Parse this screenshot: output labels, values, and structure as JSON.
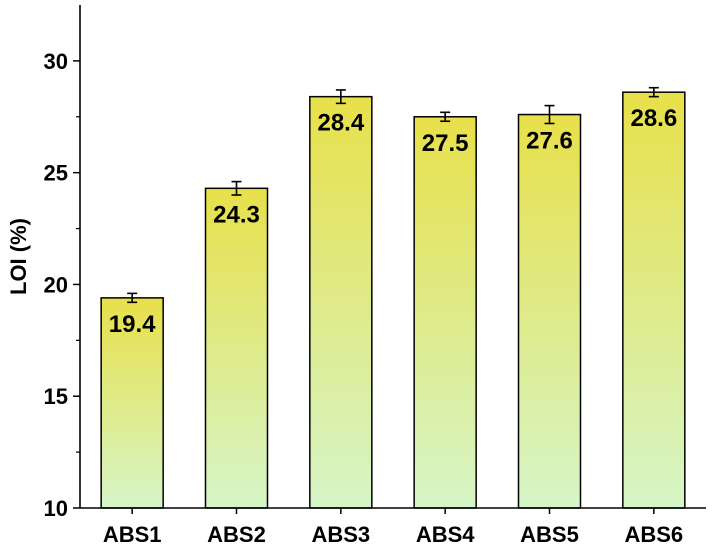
{
  "chart_data": {
    "type": "bar",
    "title": "",
    "xlabel": "",
    "ylabel": "LOI (%)",
    "categories": [
      "ABS1",
      "ABS2",
      "ABS3",
      "ABS4",
      "ABS5",
      "ABS6"
    ],
    "values": [
      19.4,
      24.3,
      28.4,
      27.5,
      27.6,
      28.6
    ],
    "errors": [
      0.2,
      0.3,
      0.3,
      0.2,
      0.4,
      0.2
    ],
    "data_labels": [
      "19.4",
      "24.3",
      "28.4",
      "27.5",
      "27.6",
      "28.6"
    ],
    "ylim": [
      10,
      32.5
    ],
    "yticks": [
      10,
      15,
      20,
      25,
      30
    ],
    "ytick_labels": [
      "10",
      "15",
      "20",
      "25",
      "30"
    ],
    "grid": false,
    "legend": "none",
    "colors": {
      "bar_top": "#e8e04a",
      "bar_bottom": "#d6f5c8",
      "bar_stroke": "#000000",
      "axis": "#000000"
    }
  }
}
